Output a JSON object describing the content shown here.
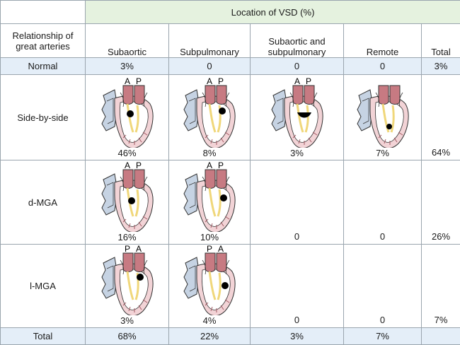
{
  "title": "Location of VSD (%)",
  "row_header": "Relationship of great arteries",
  "columns": [
    "Subaortic",
    "Subpulmonary",
    "Subaortic and subpulmonary",
    "Remote",
    "Total"
  ],
  "rows": [
    {
      "label": "Normal",
      "values": [
        "3%",
        "0",
        "0",
        "0",
        "3%"
      ]
    },
    {
      "label": "Side-by-side",
      "values": [
        "46%",
        "8%",
        "3%",
        "7%",
        "64%"
      ],
      "vessel_labels": [
        [
          "A",
          "P"
        ],
        [
          "A",
          "P"
        ],
        [
          "A",
          "P"
        ],
        []
      ]
    },
    {
      "label": "d-MGA",
      "values": [
        "16%",
        "10%",
        "0",
        "0",
        "26%"
      ],
      "vessel_labels": [
        [
          "A",
          "P"
        ],
        [
          "A",
          "P"
        ]
      ]
    },
    {
      "label": "l-MGA",
      "values": [
        "3%",
        "4%",
        "0",
        "0",
        "7%"
      ],
      "vessel_labels": [
        [
          "P",
          "A"
        ],
        [
          "P",
          "A"
        ]
      ]
    },
    {
      "label": "Total",
      "values": [
        "68%",
        "22%",
        "3%",
        "7%",
        ""
      ]
    }
  ],
  "colors": {
    "header_green": "#e5f2df",
    "row_blue": "#e4eef8",
    "artery_red": "#c77a82",
    "atrium_blue": "#c6d3e3",
    "ventricle_pink": "#f2d3d6",
    "border": "#9aa5ae"
  }
}
